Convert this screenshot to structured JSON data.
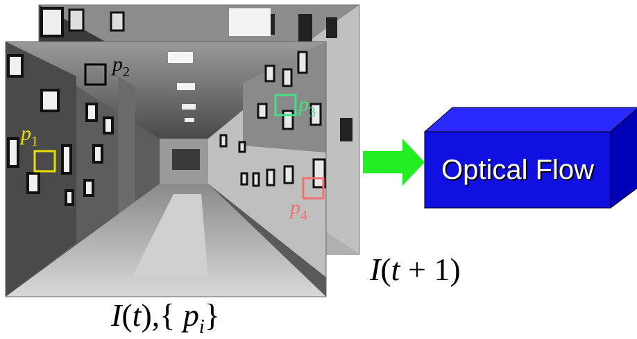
{
  "block": {
    "label": "Optical Flow",
    "front_color": "#1010e0",
    "top_color": "#2a2aff",
    "side_color": "#0000b8",
    "text_color": "#ffffff"
  },
  "arrow": {
    "color": "#22ee22"
  },
  "captions": {
    "current_frame": {
      "I": "I",
      "open": "(",
      "t": "t",
      "close_sep": "),{",
      "p": "p",
      "sub": "i",
      "end": "}"
    },
    "next_frame": {
      "I": "I",
      "open": "(",
      "t": "t",
      "plus": " + 1)"
    }
  },
  "points": [
    {
      "letter": "p",
      "sub": "1",
      "color": "#e8e000"
    },
    {
      "letter": "p",
      "sub": "2",
      "color": "#000000"
    },
    {
      "letter": "p",
      "sub": "3",
      "color": "#44e088"
    },
    {
      "letter": "p",
      "sub": "4",
      "color": "#f07070"
    }
  ]
}
